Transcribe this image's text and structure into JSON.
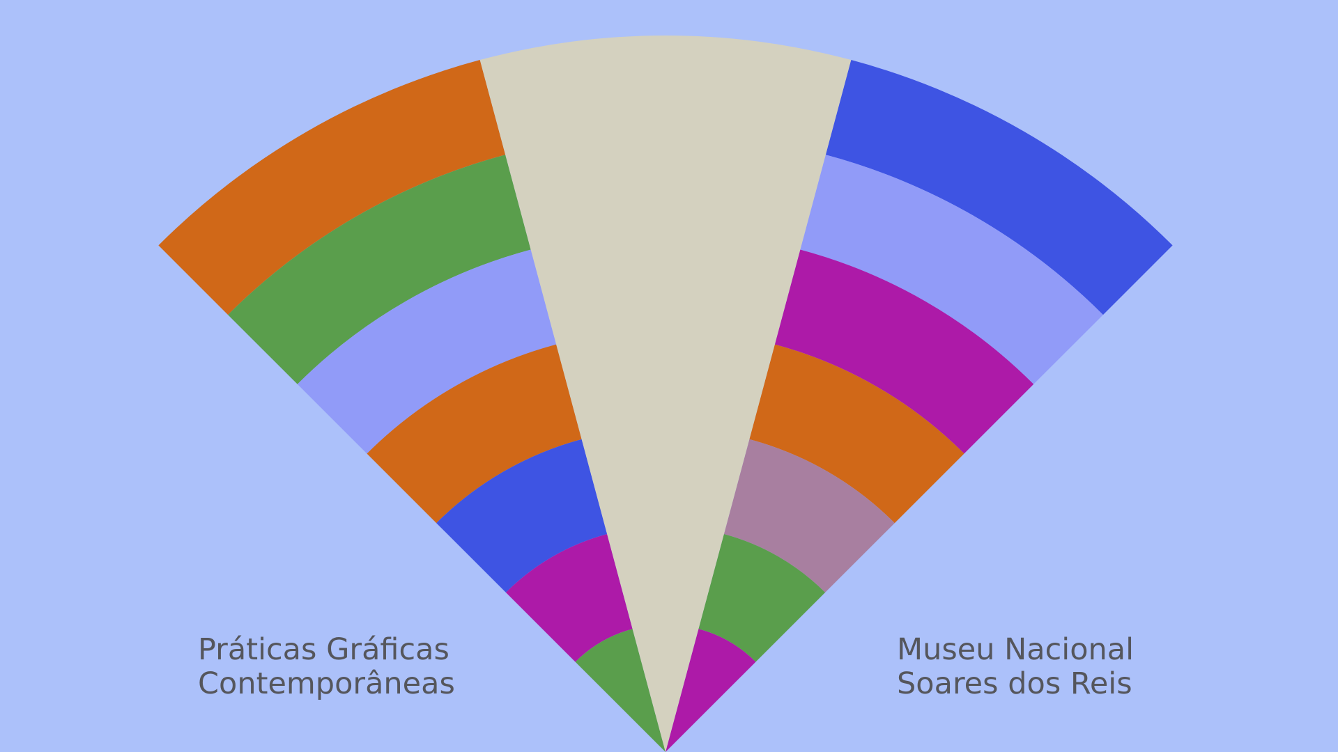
{
  "left_label": {
    "lines": [
      "Práticas Gráficas",
      "Contemporâneas"
    ]
  },
  "right_label": {
    "lines": [
      "Museu Nacional",
      "Soares dos Reis"
    ]
  }
}
